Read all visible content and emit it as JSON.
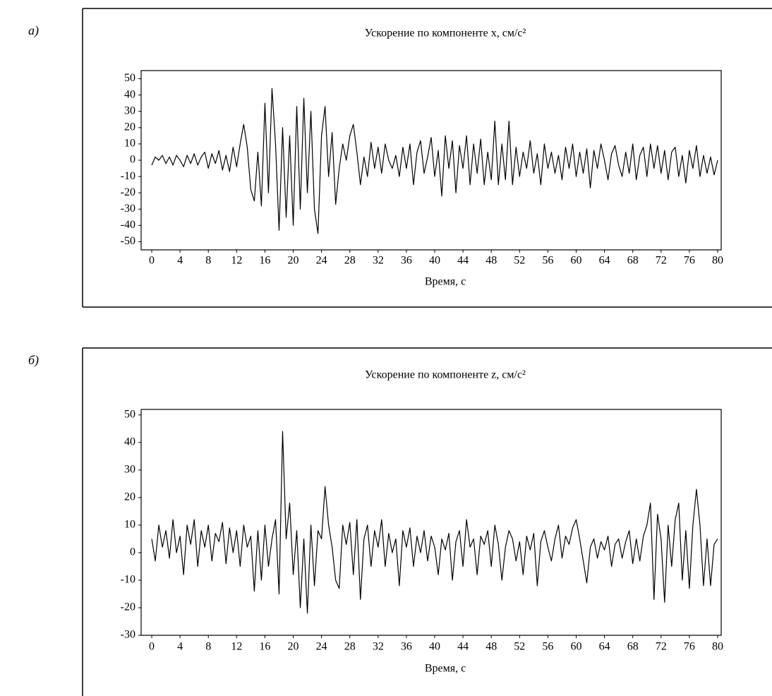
{
  "chart_data": [
    {
      "type": "line",
      "panel_label": "а)",
      "title": "Ускорение по компоненте x, см/с²",
      "x_label": "Время, с",
      "color": "#000000",
      "x": [
        0,
        0.5,
        1,
        1.5,
        2,
        2.5,
        3,
        3.5,
        4,
        4.5,
        5,
        5.5,
        6,
        6.5,
        7,
        7.5,
        8,
        8.5,
        9,
        9.5,
        10,
        10.5,
        11,
        11.5,
        12,
        12.5,
        13,
        13.5,
        14,
        14.5,
        15,
        15.5,
        16,
        16.5,
        17,
        17.5,
        18,
        18.5,
        19,
        19.5,
        20,
        20.5,
        21,
        21.5,
        22,
        22.5,
        23,
        23.5,
        24,
        24.5,
        25,
        25.5,
        26,
        26.5,
        27,
        27.5,
        28,
        28.5,
        29,
        29.5,
        30,
        30.5,
        31,
        31.5,
        32,
        32.5,
        33,
        33.5,
        34,
        34.5,
        35,
        35.5,
        36,
        36.5,
        37,
        37.5,
        38,
        38.5,
        39,
        39.5,
        40,
        40.5,
        41,
        41.5,
        42,
        42.5,
        43,
        43.5,
        44,
        44.5,
        45,
        45.5,
        46,
        46.5,
        47,
        47.5,
        48,
        48.5,
        49,
        49.5,
        50,
        50.5,
        51,
        51.5,
        52,
        52.5,
        53,
        53.5,
        54,
        54.5,
        55,
        55.5,
        56,
        56.5,
        57,
        57.5,
        58,
        58.5,
        59,
        59.5,
        60,
        60.5,
        61,
        61.5,
        62,
        62.5,
        63,
        63.5,
        64,
        64.5,
        65,
        65.5,
        66,
        66.5,
        67,
        67.5,
        68,
        68.5,
        69,
        69.5,
        70,
        70.5,
        71,
        71.5,
        72,
        72.5,
        73,
        73.5,
        74,
        74.5,
        75,
        75.5,
        76,
        76.5,
        77,
        77.5,
        78,
        78.5,
        79,
        79.5,
        80
      ],
      "values": [
        -3,
        2,
        0,
        3,
        -2,
        2,
        -3,
        3,
        0,
        -4,
        3,
        -2,
        4,
        -3,
        2,
        5,
        -5,
        4,
        -2,
        6,
        -6,
        3,
        -7,
        8,
        -4,
        10,
        22,
        8,
        -18,
        -25,
        5,
        -28,
        35,
        -20,
        44,
        10,
        -43,
        20,
        -35,
        15,
        -40,
        33,
        -30,
        38,
        -20,
        30,
        -30,
        -45,
        15,
        33,
        -10,
        17,
        -27,
        -5,
        10,
        0,
        15,
        22,
        5,
        -15,
        2,
        -10,
        11,
        -5,
        8,
        -8,
        10,
        0,
        -5,
        3,
        -10,
        8,
        -5,
        10,
        -15,
        5,
        12,
        -8,
        2,
        14,
        -10,
        6,
        -22,
        15,
        -5,
        12,
        -20,
        9,
        -5,
        15,
        -15,
        10,
        -8,
        13,
        -15,
        5,
        -12,
        24,
        -15,
        10,
        -12,
        24,
        -15,
        8,
        -10,
        5,
        -5,
        12,
        -8,
        4,
        -15,
        10,
        -5,
        5,
        -8,
        3,
        -12,
        8,
        -5,
        10,
        -10,
        5,
        -8,
        7,
        -17,
        6,
        -5,
        10,
        0,
        -12,
        4,
        9,
        -3,
        -10,
        5,
        -8,
        10,
        -12,
        3,
        8,
        -10,
        10,
        -5,
        9,
        -8,
        6,
        -12,
        5,
        8,
        -10,
        3,
        -14,
        6,
        -5,
        9,
        -10,
        3,
        -8,
        2,
        -9,
        0
      ],
      "xlim": [
        -1.5,
        80.5
      ],
      "xticks": [
        0,
        4,
        8,
        12,
        16,
        20,
        24,
        28,
        32,
        36,
        40,
        44,
        48,
        52,
        56,
        60,
        64,
        68,
        72,
        76,
        80
      ],
      "ylim": [
        -55,
        55
      ],
      "yticks": [
        50,
        40,
        30,
        20,
        10,
        0,
        -10,
        -20,
        -30,
        -40,
        -50
      ]
    },
    {
      "type": "line",
      "panel_label": "б)",
      "title": "Ускорение по компоненте z, см/с²",
      "x_label": "Время, с",
      "color": "#000000",
      "x": [
        0,
        0.5,
        1,
        1.5,
        2,
        2.5,
        3,
        3.5,
        4,
        4.5,
        5,
        5.5,
        6,
        6.5,
        7,
        7.5,
        8,
        8.5,
        9,
        9.5,
        10,
        10.5,
        11,
        11.5,
        12,
        12.5,
        13,
        13.5,
        14,
        14.5,
        15,
        15.5,
        16,
        16.5,
        17,
        17.5,
        18,
        18.5,
        19,
        19.5,
        20,
        20.5,
        21,
        21.5,
        22,
        22.5,
        23,
        23.5,
        24,
        24.5,
        25,
        25.5,
        26,
        26.5,
        27,
        27.5,
        28,
        28.5,
        29,
        29.5,
        30,
        30.5,
        31,
        31.5,
        32,
        32.5,
        33,
        33.5,
        34,
        34.5,
        35,
        35.5,
        36,
        36.5,
        37,
        37.5,
        38,
        38.5,
        39,
        39.5,
        40,
        40.5,
        41,
        41.5,
        42,
        42.5,
        43,
        43.5,
        44,
        44.5,
        45,
        45.5,
        46,
        46.5,
        47,
        47.5,
        48,
        48.5,
        49,
        49.5,
        50,
        50.5,
        51,
        51.5,
        52,
        52.5,
        53,
        53.5,
        54,
        54.5,
        55,
        55.5,
        56,
        56.5,
        57,
        57.5,
        58,
        58.5,
        59,
        59.5,
        60,
        60.5,
        61,
        61.5,
        62,
        62.5,
        63,
        63.5,
        64,
        64.5,
        65,
        65.5,
        66,
        66.5,
        67,
        67.5,
        68,
        68.5,
        69,
        69.5,
        70,
        70.5,
        71,
        71.5,
        72,
        72.5,
        73,
        73.5,
        74,
        74.5,
        75,
        75.5,
        76,
        76.5,
        77,
        77.5,
        78,
        78.5,
        79,
        79.5,
        80
      ],
      "values": [
        5,
        -3,
        10,
        2,
        8,
        -2,
        12,
        0,
        6,
        -8,
        10,
        3,
        12,
        -5,
        8,
        2,
        10,
        -3,
        7,
        4,
        11,
        -4,
        9,
        0,
        8,
        -5,
        10,
        2,
        6,
        -14,
        8,
        -10,
        10,
        -5,
        5,
        12,
        -15,
        44,
        5,
        18,
        -8,
        8,
        -20,
        5,
        -22,
        10,
        -12,
        8,
        5,
        24,
        10,
        2,
        -10,
        -13,
        10,
        3,
        11,
        -8,
        12,
        -17,
        5,
        10,
        -5,
        8,
        2,
        12,
        -5,
        7,
        0,
        5,
        -12,
        8,
        2,
        9,
        -5,
        6,
        0,
        8,
        -3,
        6,
        2,
        -8,
        5,
        1,
        7,
        -10,
        4,
        8,
        -5,
        12,
        2,
        5,
        -8,
        6,
        3,
        8,
        -5,
        10,
        3,
        -10,
        2,
        8,
        5,
        -3,
        4,
        -8,
        6,
        1,
        7,
        -12,
        4,
        8,
        2,
        -3,
        5,
        10,
        -2,
        6,
        3,
        9,
        12,
        5,
        -3,
        -11,
        2,
        5,
        -2,
        4,
        1,
        6,
        -5,
        3,
        5,
        -2,
        4,
        8,
        -4,
        5,
        -3,
        6,
        10,
        18,
        -17,
        14,
        5,
        -18,
        10,
        -5,
        12,
        18,
        -10,
        8,
        -13,
        10,
        23,
        10,
        -12,
        5,
        -12,
        3,
        5
      ],
      "xlim": [
        -1.5,
        80.5
      ],
      "xticks": [
        0,
        4,
        8,
        12,
        16,
        20,
        24,
        28,
        32,
        36,
        40,
        44,
        48,
        52,
        56,
        60,
        64,
        68,
        72,
        76,
        80
      ],
      "ylim": [
        -30,
        52
      ],
      "yticks": [
        50,
        40,
        30,
        20,
        10,
        0,
        -10,
        -20,
        -30
      ]
    }
  ]
}
